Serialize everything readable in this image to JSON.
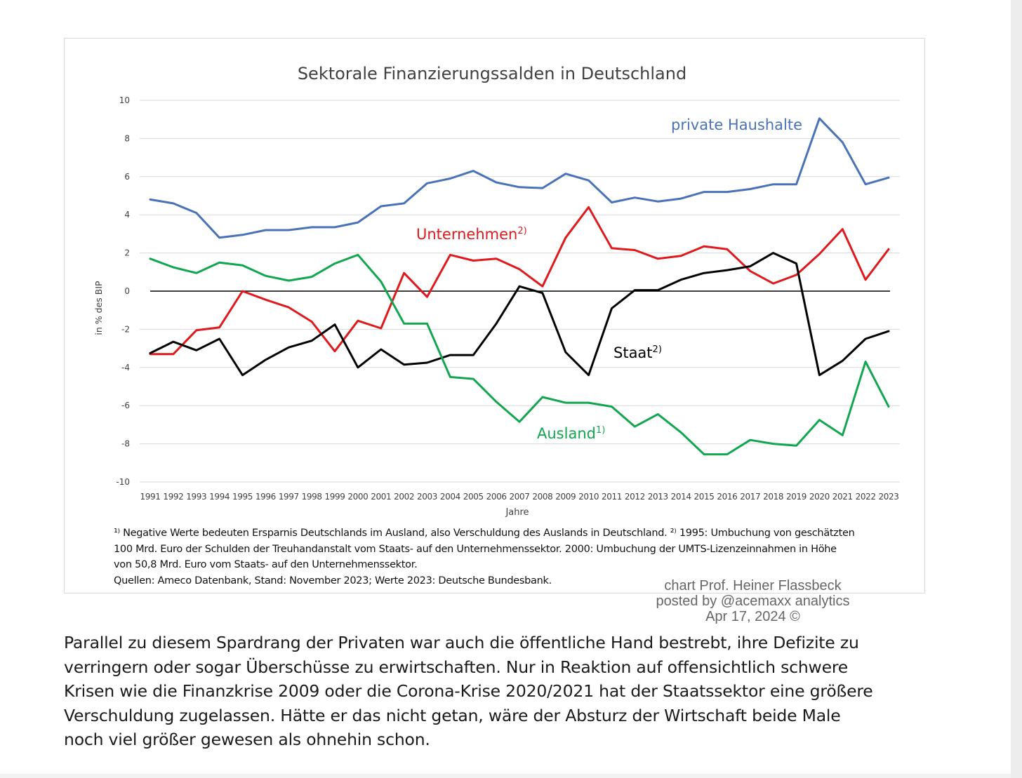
{
  "chart_data": {
    "type": "line",
    "title": "Sektorale Finanzierungssalden in Deutschland",
    "xlabel": "Jahre",
    "ylabel": "in % des BIP",
    "ylim": [
      -10,
      10
    ],
    "yticks": [
      "10",
      "8",
      "6",
      "4",
      "2",
      "0",
      "-2",
      "-4",
      "-6",
      "-8",
      "-10"
    ],
    "ytick_values": [
      10,
      8,
      6,
      4,
      2,
      0,
      -2,
      -4,
      -6,
      -8,
      -10
    ],
    "grid": true,
    "x": [
      "1991",
      "1992",
      "1993",
      "1994",
      "1995",
      "1996",
      "1997",
      "1998",
      "1999",
      "2000",
      "2001",
      "2002",
      "2003",
      "2004",
      "2005",
      "2006",
      "2007",
      "2008",
      "2009",
      "2010",
      "2011",
      "2012",
      "2013",
      "2014",
      "2015",
      "2016",
      "2017",
      "2018",
      "2019",
      "2020",
      "2021",
      "2022",
      "2023"
    ],
    "series": [
      {
        "key": "haushalte",
        "name": "private Haushalte",
        "color": "#4a72b8",
        "values": [
          4.8,
          4.6,
          4.1,
          2.8,
          2.95,
          3.2,
          3.2,
          3.35,
          3.35,
          3.6,
          4.45,
          4.6,
          5.65,
          5.9,
          6.3,
          5.7,
          5.45,
          5.4,
          6.15,
          5.8,
          4.65,
          4.9,
          4.7,
          4.85,
          5.2,
          5.2,
          5.35,
          5.6,
          5.6,
          9.05,
          7.8,
          5.6,
          5.95
        ]
      },
      {
        "key": "unternehmen",
        "name": "Unternehmen",
        "sup": "2)",
        "color": "#e0191c",
        "values": [
          -3.3,
          -3.3,
          -2.05,
          -1.9,
          0.0,
          -0.45,
          -0.85,
          -1.6,
          -3.15,
          -1.55,
          -1.95,
          0.95,
          -0.3,
          1.9,
          1.6,
          1.7,
          1.15,
          0.25,
          2.8,
          4.4,
          2.25,
          2.15,
          1.7,
          1.85,
          2.35,
          2.2,
          1.05,
          0.4,
          0.85,
          1.95,
          3.25,
          0.6,
          2.2
        ]
      },
      {
        "key": "staat",
        "name": "Staat",
        "sup": "2)",
        "color": "#000000",
        "values": [
          -3.25,
          -2.65,
          -3.1,
          -2.5,
          -4.4,
          -3.6,
          -2.95,
          -2.6,
          -1.75,
          -4.0,
          -3.05,
          -3.85,
          -3.75,
          -3.35,
          -3.35,
          -1.7,
          0.25,
          -0.1,
          -3.2,
          -4.4,
          -0.9,
          0.05,
          0.05,
          0.6,
          0.95,
          1.1,
          1.3,
          2.0,
          1.45,
          -4.4,
          -3.65,
          -2.5,
          -2.1
        ]
      },
      {
        "key": "ausland",
        "name": "Ausland",
        "sup": "1)",
        "color": "#12a650",
        "values": [
          1.7,
          1.25,
          0.95,
          1.5,
          1.35,
          0.8,
          0.55,
          0.75,
          1.45,
          1.9,
          0.5,
          -1.7,
          -1.7,
          -4.5,
          -4.6,
          -5.8,
          -6.85,
          -5.55,
          -5.85,
          -5.85,
          -6.05,
          -7.1,
          -6.45,
          -7.4,
          -8.55,
          -8.55,
          -7.8,
          -8.0,
          -8.1,
          -6.75,
          -7.55,
          -3.7,
          -6.05
        ]
      }
    ]
  },
  "footnotes": {
    "line1": "¹⁾ Negative Werte bedeuten Ersparnis Deutschlands im Ausland, also Verschuldung des Auslands in Deutschland. ²⁾ 1995:  Umbuchung von geschätzten",
    "line2": "100  Mrd. Euro der Schulden der Treuhandanstalt vom Staats- auf den Unternehmenssektor. 2000: Umbuchung der UMTS-Lizenzeinnahmen in Höhe",
    "line3": "von 50,8  Mrd. Euro vom Staats- auf den Unternehmenssektor.",
    "line4": "Quellen: Ameco Datenbank, Stand: November 2023; Werte 2023:  Deutsche Bundesbank."
  },
  "credit": {
    "line1": "chart Prof. Heiner Flassbeck",
    "line2": "posted by @acemaxx analytics",
    "line3": "Apr 17, 2024 ©"
  },
  "paragraph": {
    "line1": "Parallel zu diesem Spardrang der Privaten war auch die öffentliche Hand bestrebt, ihre Defizite zu",
    "line2": "verringern oder sogar Überschüsse zu erwirtschaften. Nur in Reaktion auf offensichtlich schwere",
    "line3": "Krisen wie die Finanzkrise 2009 oder die Corona-Krise 2020/2021 hat der Staatssektor eine größere",
    "line4": "Verschuldung zugelassen. Hätte er das nicht getan, wäre der Absturz der Wirtschaft beide Male",
    "line5": "noch viel größer gewesen als ohnehin schon."
  }
}
